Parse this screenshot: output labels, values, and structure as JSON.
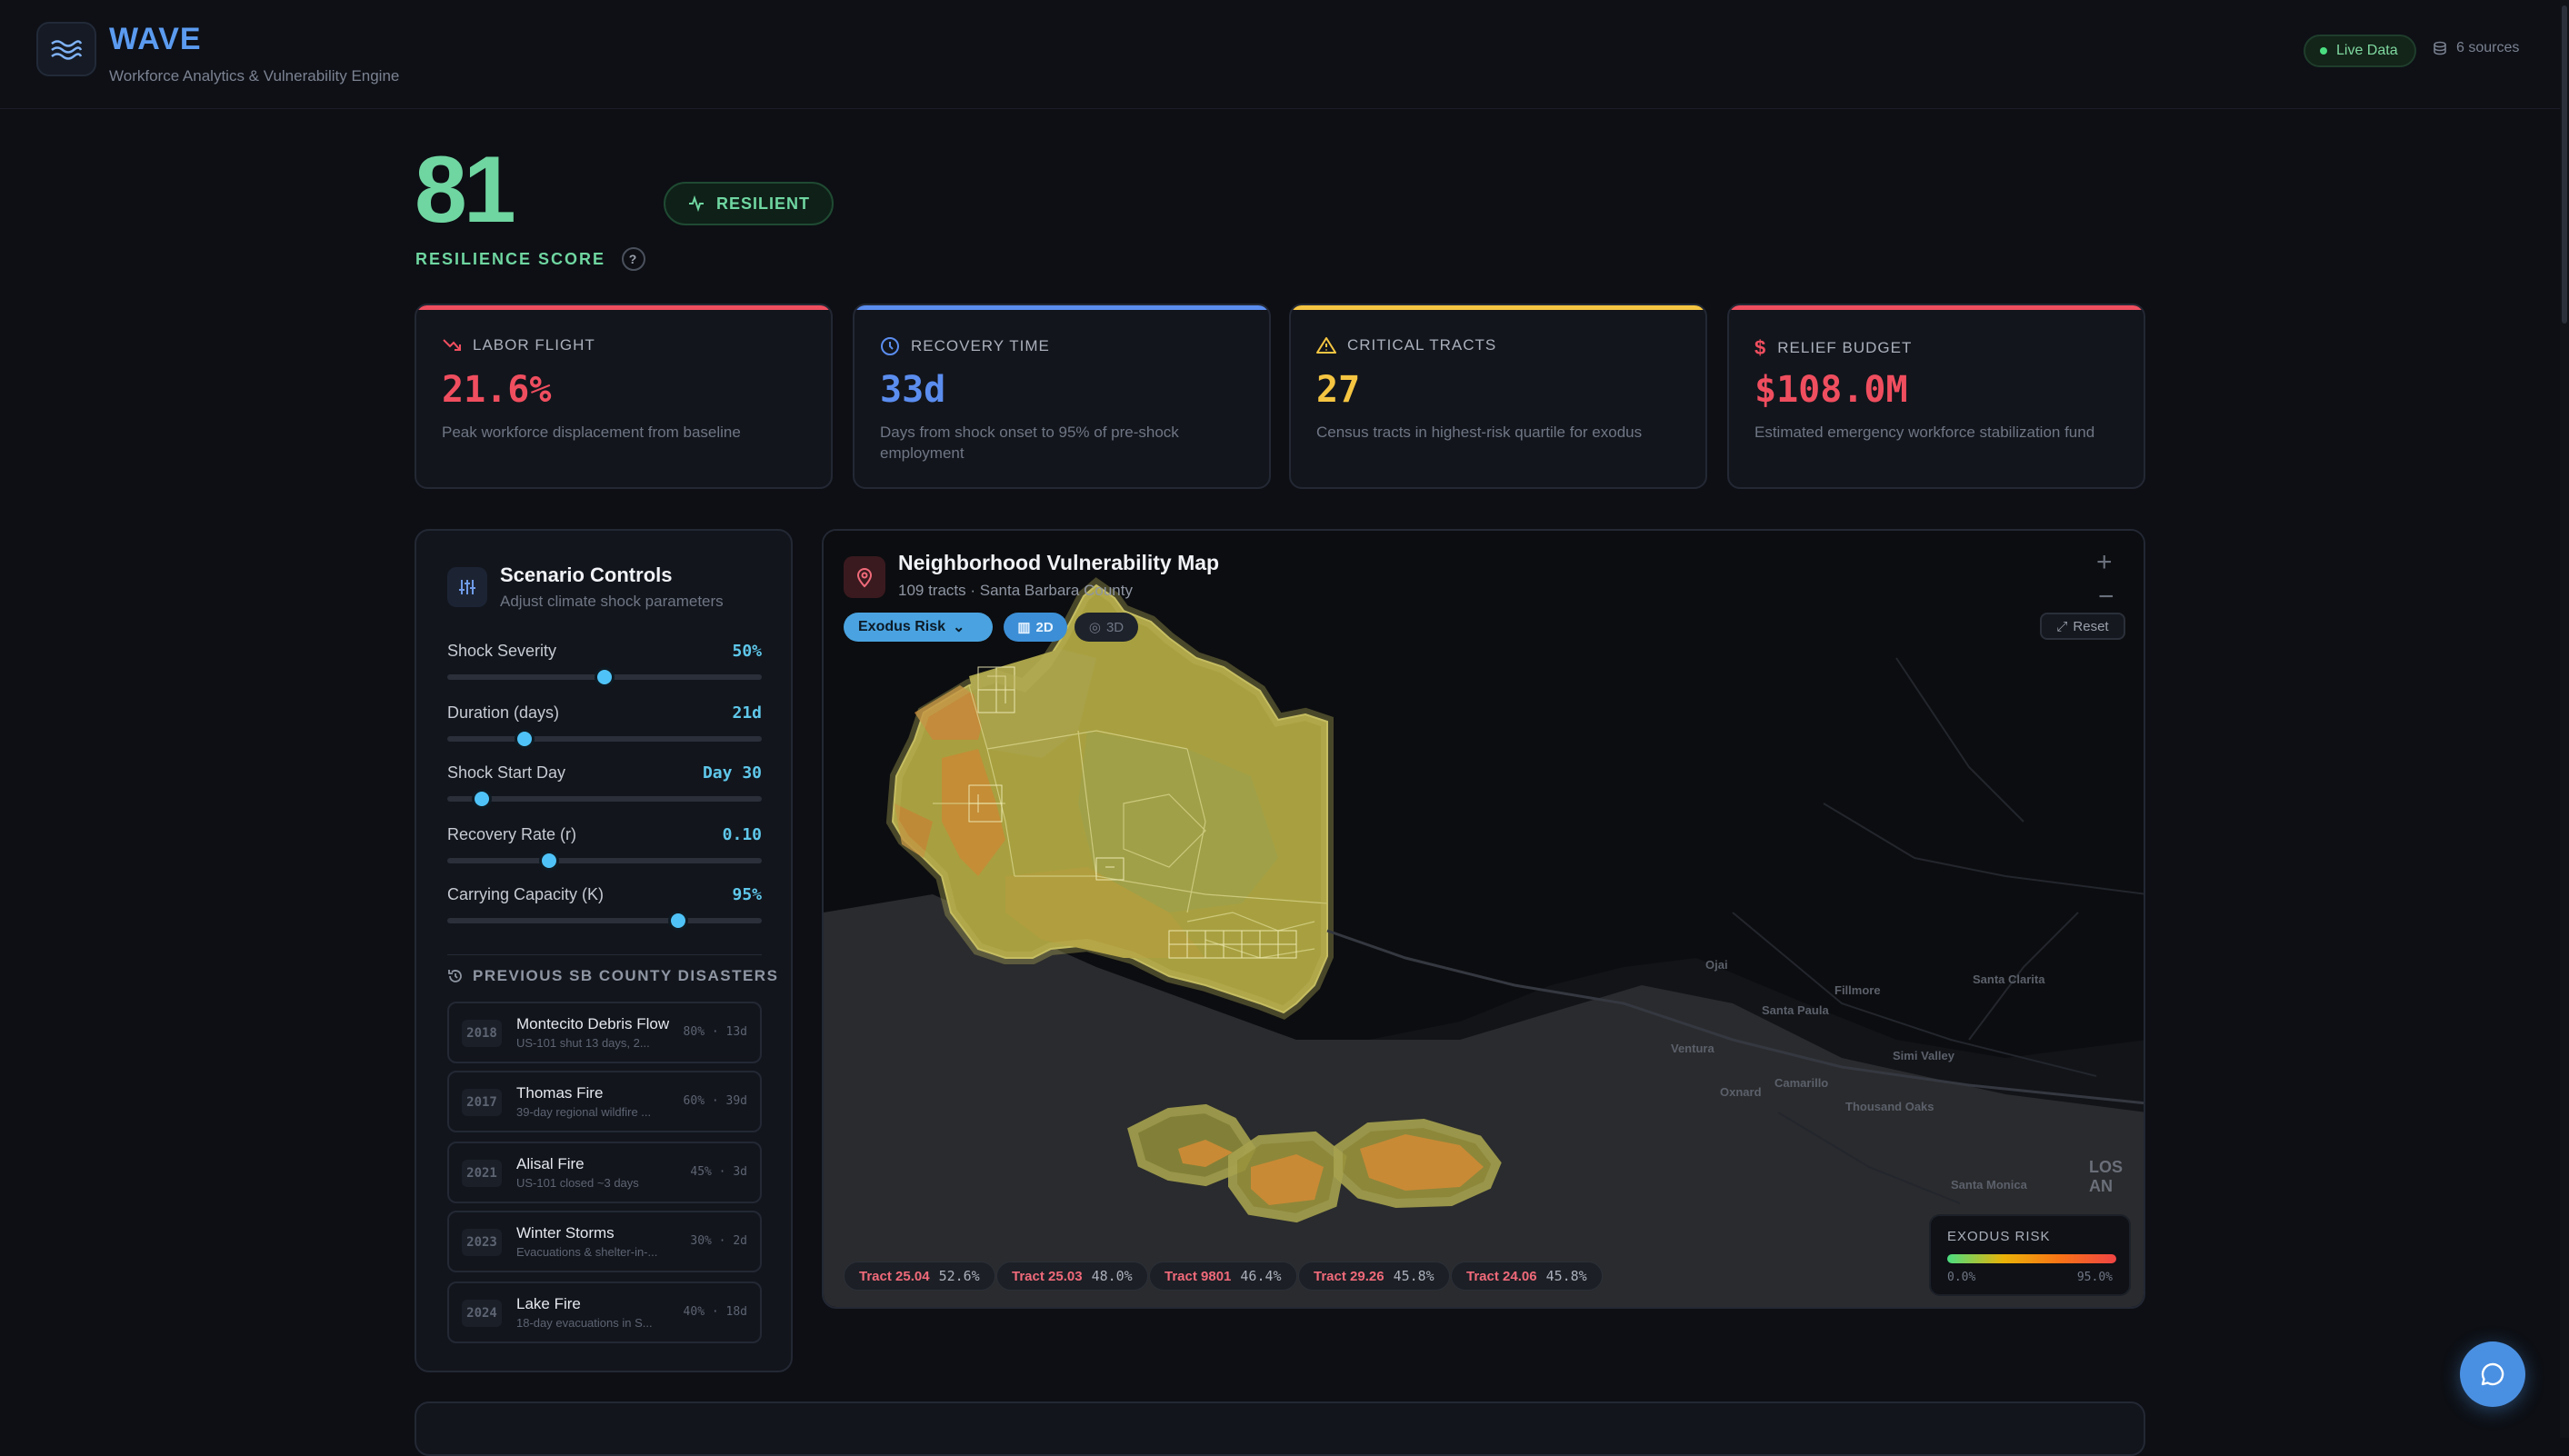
{
  "app": {
    "title": "WAVE",
    "subtitle": "Workforce Analytics & Vulnerability Engine",
    "live_label": "Live Data",
    "sources_label": "6 sources"
  },
  "score": {
    "value": "81",
    "label": "RESILIENCE SCORE",
    "badge": "RESILIENT"
  },
  "stats": [
    {
      "title": "LABOR FLIGHT",
      "value": "21.6%",
      "desc": "Peak workforce displacement from baseline",
      "color": "#ef4e5f",
      "icon": "trending-down-icon"
    },
    {
      "title": "RECOVERY TIME",
      "value": "33d",
      "desc": "Days from shock onset to 95% of pre-shock employment",
      "color": "#5b8def",
      "icon": "clock-icon"
    },
    {
      "title": "CRITICAL TRACTS",
      "value": "27",
      "desc": "Census tracts in highest-risk quartile for exodus",
      "color": "#f5c542",
      "icon": "warning-icon"
    },
    {
      "title": "RELIEF BUDGET",
      "value": "$108.0M",
      "desc": "Estimated emergency workforce stabilization fund",
      "color": "#ef4e5f",
      "icon": "dollar-icon"
    }
  ],
  "scenario": {
    "title": "Scenario Controls",
    "subtitle": "Adjust climate shock parameters",
    "controls": [
      {
        "label": "Shock Severity",
        "value": "50%",
        "level": 0.5
      },
      {
        "label": "Duration (days)",
        "value": "21d",
        "level": 0.245
      },
      {
        "label": "Shock Start Day",
        "value": "Day 30",
        "level": 0.11
      },
      {
        "label": "Recovery Rate (r)",
        "value": "0.10",
        "level": 0.325
      },
      {
        "label": "Carrying Capacity (K)",
        "value": "95%",
        "level": 0.735
      }
    ],
    "previous_title": "PREVIOUS SB COUNTY DISASTERS",
    "disasters": [
      {
        "year": "2018",
        "name": "Montecito Debris Flow",
        "desc": "US-101 shut 13 days, 2...",
        "meta": "80% · 13d"
      },
      {
        "year": "2017",
        "name": "Thomas Fire",
        "desc": "39-day regional wildfire ...",
        "meta": "60% · 39d"
      },
      {
        "year": "2021",
        "name": "Alisal Fire",
        "desc": "US-101 closed ~3 days",
        "meta": "45% · 3d"
      },
      {
        "year": "2023",
        "name": "Winter Storms",
        "desc": "Evacuations & shelter-in-...",
        "meta": "30% · 2d"
      },
      {
        "year": "2024",
        "name": "Lake Fire",
        "desc": "18-day evacuations in S...",
        "meta": "40% · 18d"
      }
    ]
  },
  "map": {
    "title": "Neighborhood Vulnerability Map",
    "subtitle": "109 tracts · Santa Barbara County",
    "layer": "Exodus Risk",
    "mode_2d": "2D",
    "mode_3d": "3D",
    "reset": "Reset",
    "places": [
      "Ojai",
      "Fillmore",
      "Santa Clarita",
      "Santa Paula",
      "Simi Valley",
      "Ventura",
      "Oxnard",
      "Camarillo",
      "Thousand Oaks",
      "Santa Monica",
      "LOS AN"
    ],
    "legend": {
      "title": "EXODUS RISK",
      "min": "0.0%",
      "max": "95.0%"
    },
    "tracts": [
      {
        "name": "Tract 25.04",
        "value": "52.6%"
      },
      {
        "name": "Tract 25.03",
        "value": "48.0%"
      },
      {
        "name": "Tract 9801",
        "value": "46.4%"
      },
      {
        "name": "Tract 29.26",
        "value": "45.8%"
      },
      {
        "name": "Tract 24.06",
        "value": "45.8%"
      }
    ]
  }
}
